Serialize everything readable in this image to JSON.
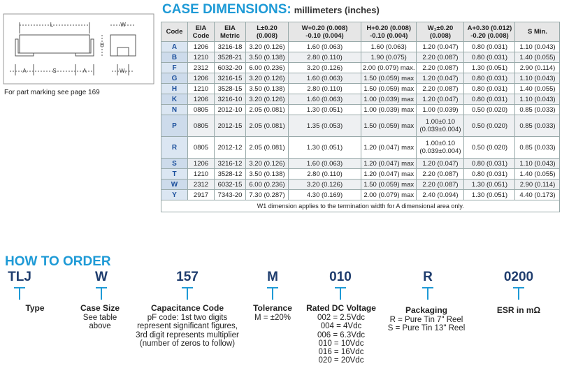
{
  "diagram": {
    "labels": [
      "L",
      "W",
      "H",
      "A",
      "S",
      "A",
      "W₁"
    ]
  },
  "note": "For part marking see page 169",
  "title": {
    "main": "CASE DIMENSIONS:",
    "units": "millimeters (inches)"
  },
  "table": {
    "header": [
      [
        "Code"
      ],
      [
        "EIA",
        "Code"
      ],
      [
        "EIA",
        "Metric"
      ],
      [
        "L±0.20",
        "(0.008)"
      ],
      [
        "W+0.20 (0.008)",
        "-0.10 (0.004)"
      ],
      [
        "H+0.20 (0.008)",
        "-0.10 (0.004)"
      ],
      [
        "W₁±0.20",
        "(0.008)"
      ],
      [
        "A+0.30 (0.012)",
        "-0.20 (0.008)"
      ],
      [
        "S Min."
      ]
    ],
    "rows": [
      [
        "A",
        "1206",
        "3216-18",
        "3.20 (0.126)",
        "1.60 (0.063)",
        "1.60 (0.063)",
        "1.20 (0.047)",
        "0.80 (0.031)",
        "1.10 (0.043)"
      ],
      [
        "B",
        "1210",
        "3528-21",
        "3.50 (0.138)",
        "2.80 (0.110)",
        "1.90 (0.075)",
        "2.20 (0.087)",
        "0.80 (0.031)",
        "1.40 (0.055)"
      ],
      [
        "F",
        "2312",
        "6032-20",
        "6.00 (0.236)",
        "3.20 (0.126)",
        "2.00 (0.079) max.",
        "2.20 (0.087)",
        "1.30 (0.051)",
        "2.90 (0.114)"
      ],
      [
        "G",
        "1206",
        "3216-15",
        "3.20 (0.126)",
        "1.60 (0.063)",
        "1.50 (0.059) max",
        "1.20 (0.047)",
        "0.80 (0.031)",
        "1.10 (0.043)"
      ],
      [
        "H",
        "1210",
        "3528-15",
        "3.50 (0.138)",
        "2.80 (0.110)",
        "1.50 (0.059) max",
        "2.20 (0.087)",
        "0.80 (0.031)",
        "1.40 (0.055)"
      ],
      [
        "K",
        "1206",
        "3216-10",
        "3.20 (0.126)",
        "1.60 (0.063)",
        "1.00 (0.039) max",
        "1.20 (0.047)",
        "0.80 (0.031)",
        "1.10 (0.043)"
      ],
      [
        "N",
        "0805",
        "2012-10",
        "2.05 (0.081)",
        "1.30 (0.051)",
        "1.00 (0.039) max",
        "1.00 (0.039)",
        "0.50 (0.020)",
        "0.85 (0.033)"
      ],
      [
        "P",
        "0805",
        "2012-15",
        "2.05 (0.081)",
        "1.35 (0.053)",
        "1.50 (0.059) max",
        [
          "1.00±0.10",
          "(0.039±0.004)"
        ],
        "0.50 (0.020)",
        "0.85 (0.033)"
      ],
      [
        "R",
        "0805",
        "2012-12",
        "2.05 (0.081)",
        "1.30 (0.051)",
        "1.20 (0.047) max",
        [
          "1.00±0.10",
          "(0.039±0.004)"
        ],
        "0.50 (0.020)",
        "0.85 (0.033)"
      ],
      [
        "S",
        "1206",
        "3216-12",
        "3.20 (0.126)",
        "1.60 (0.063)",
        "1.20 (0.047) max",
        "1.20 (0.047)",
        "0.80 (0.031)",
        "1.10 (0.043)"
      ],
      [
        "T",
        "1210",
        "3528-12",
        "3.50 (0.138)",
        "2.80 (0.110)",
        "1.20 (0.047) max",
        "2.20 (0.087)",
        "0.80 (0.031)",
        "1.40 (0.055)"
      ],
      [
        "W",
        "2312",
        "6032-15",
        "6.00 (0.236)",
        "3.20 (0.126)",
        "1.50 (0.059) max",
        "2.20 (0.087)",
        "1.30 (0.051)",
        "2.90 (0.114)"
      ],
      [
        "Y",
        "2917",
        "7343-20",
        "7.30 (0.287)",
        "4.30 (0.169)",
        "2.00 (0.079) max",
        "2.40 (0.094)",
        "1.30 (0.051)",
        "4.40 (0.173)"
      ]
    ],
    "footnote": "W1 dimension applies to the termination width for A dimensional area only."
  },
  "how_to_order": {
    "title": "HOW TO ORDER",
    "items": [
      {
        "code": "TLJ",
        "label": "Type",
        "lines": []
      },
      {
        "code": "W",
        "label": "Case Size",
        "lines": [
          "See table",
          "above"
        ]
      },
      {
        "code": "157",
        "label": "Capacitance Code",
        "lines": [
          "pF code: 1st two digits",
          "represent significant figures,",
          "3rd digit represents multiplier",
          "(number of zeros to follow)"
        ]
      },
      {
        "code": "M",
        "label": "Tolerance",
        "lines": [
          "M = ±20%"
        ]
      },
      {
        "code": "010",
        "label": "Rated DC Voltage",
        "lines": [
          "002 = 2.5Vdc",
          "004 = 4Vdc",
          "006 = 6.3Vdc",
          "010 = 10Vdc",
          "016 = 16Vdc",
          "020 = 20Vdc"
        ]
      },
      {
        "code": "R",
        "label": "Packaging",
        "lines": [
          "R = Pure Tin 7\" Reel",
          "S = Pure Tin 13\" Reel"
        ]
      },
      {
        "code": "0200",
        "label": "ESR in mΩ",
        "lines": []
      }
    ]
  }
}
